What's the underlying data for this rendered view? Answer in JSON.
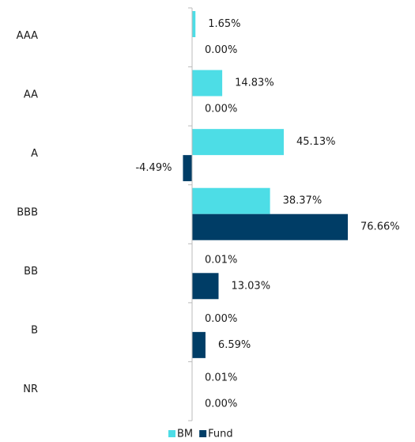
{
  "chart_data": {
    "type": "hbar",
    "categories": [
      "AAA",
      "AA",
      "A",
      "BBB",
      "BB",
      "B",
      "NR"
    ],
    "series": [
      {
        "name": "BM",
        "color": "#4ddde6",
        "values": [
          1.65,
          14.83,
          45.13,
          38.37,
          0.01,
          0.0,
          0.01
        ],
        "value_labels": [
          "1.65%",
          "14.83%",
          "45.13%",
          "38.37%",
          "0.01%",
          "0.00%",
          "0.01%"
        ]
      },
      {
        "name": "Fund",
        "color": "#003d66",
        "values": [
          0.0,
          0.0,
          -4.49,
          76.66,
          13.03,
          6.59,
          0.0
        ],
        "value_labels": [
          "0.00%",
          "0.00%",
          "-4.49%",
          "76.66%",
          "13.03%",
          "6.59%",
          "0.00%"
        ]
      }
    ],
    "xlim": [
      -10,
      100
    ],
    "legend": "bottom"
  }
}
